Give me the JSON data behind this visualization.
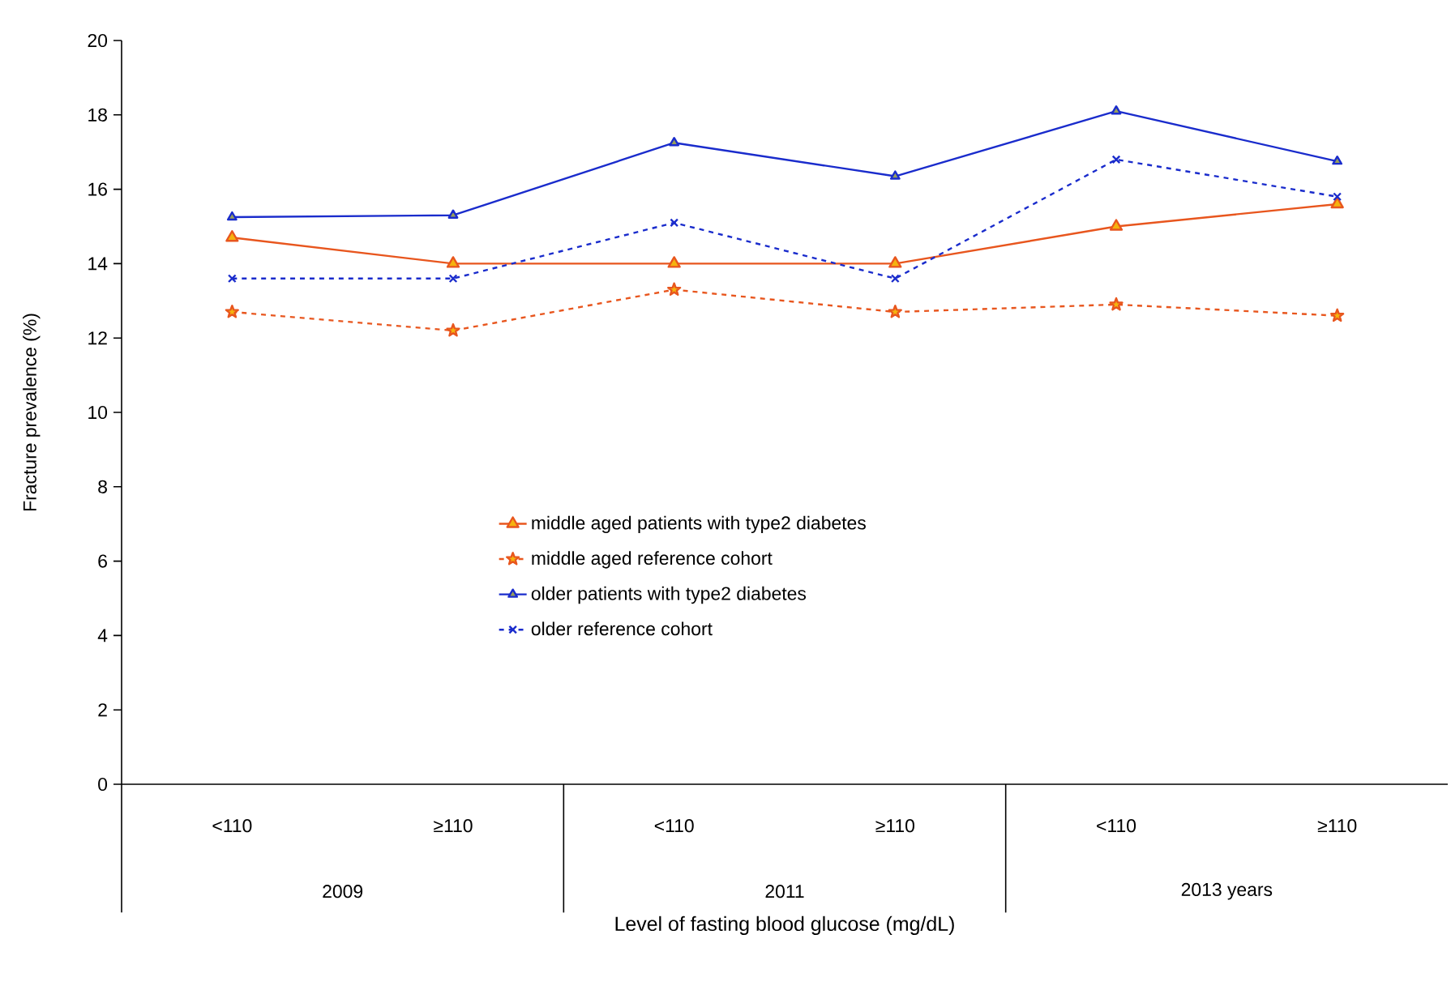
{
  "chart_data": {
    "type": "line",
    "xlabel": "Level of fasting blood glucose (mg/dL)",
    "ylabel": "Fracture prevalence (%)",
    "categories": [
      "<110",
      "≥110",
      "<110",
      "≥110",
      "<110",
      "≥110"
    ],
    "annotations": [
      "2009",
      "2011",
      "2013  years"
    ],
    "ylim": [
      0,
      20
    ],
    "yticks": [
      0,
      2,
      4,
      6,
      8,
      10,
      12,
      14,
      16,
      18,
      20
    ],
    "grid": false,
    "legend": "center",
    "series": [
      {
        "name": "middle aged patients with type2 diabetes",
        "color": "#e8561e",
        "marker": "triangle",
        "line_style": "solid",
        "values": [
          14.7,
          14.0,
          14.0,
          14.0,
          15.0,
          15.6
        ]
      },
      {
        "name": "middle aged  reference cohort",
        "color": "#e8561e",
        "marker": "star",
        "line_style": "dashed",
        "values": [
          12.7,
          12.2,
          13.3,
          12.7,
          12.9,
          12.6
        ]
      },
      {
        "name": "older patients with type2 diabetes",
        "color": "#1a2ccc",
        "marker": "triangle",
        "line_style": "solid",
        "values": [
          15.25,
          15.3,
          17.25,
          16.35,
          18.1,
          16.75
        ]
      },
      {
        "name": "older  reference cohort",
        "color": "#1a2ccc",
        "marker": "cross",
        "line_style": "dashed",
        "values": [
          13.6,
          13.6,
          15.1,
          13.6,
          16.8,
          15.8
        ]
      }
    ]
  }
}
